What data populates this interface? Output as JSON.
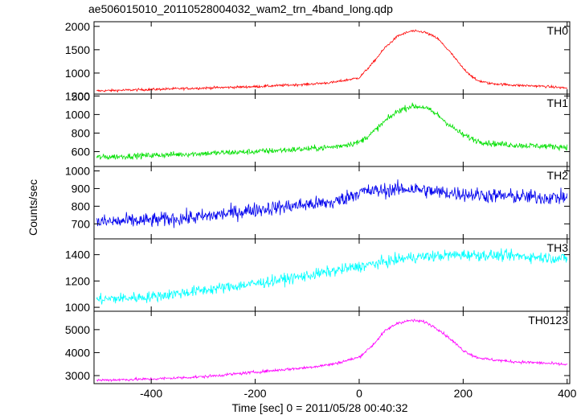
{
  "chart_data": {
    "type": "line",
    "title": "ae506015010_20110528004032_wam2_trn_4band_long.qdp",
    "xlabel": "Time [sec] 0 = 2011/05/28 00:40:32",
    "ylabel": "Counts/sec",
    "xlim": [
      -510,
      405
    ],
    "x_ticks": [
      -400,
      -200,
      0,
      200,
      400
    ],
    "grid": false,
    "panels": [
      {
        "name": "TH0",
        "color": "#ff0000",
        "ylim": [
          550,
          2100
        ],
        "y_ticks": [
          500,
          1000,
          1500,
          2000
        ],
        "x": [
          -500,
          -400,
          -300,
          -200,
          -100,
          -50,
          0,
          25,
          50,
          75,
          100,
          125,
          150,
          175,
          200,
          225,
          250,
          300,
          350,
          400
        ],
        "y": [
          620,
          650,
          680,
          710,
          760,
          800,
          900,
          1200,
          1550,
          1800,
          1900,
          1880,
          1750,
          1450,
          1100,
          850,
          780,
          740,
          720,
          680
        ],
        "noise": 25
      },
      {
        "name": "TH1",
        "color": "#00e000",
        "ylim": [
          440,
          1220
        ],
        "y_ticks": [
          600,
          800,
          1000,
          1200
        ],
        "x": [
          -500,
          -400,
          -300,
          -200,
          -100,
          -50,
          0,
          25,
          50,
          75,
          100,
          125,
          150,
          175,
          200,
          225,
          250,
          300,
          350,
          400
        ],
        "y": [
          540,
          560,
          580,
          600,
          630,
          650,
          700,
          800,
          930,
          1040,
          1090,
          1080,
          1000,
          880,
          780,
          720,
          690,
          670,
          660,
          650
        ],
        "noise": 30
      },
      {
        "name": "TH2",
        "color": "#0000ee",
        "ylim": [
          615,
          1025
        ],
        "y_ticks": [
          700,
          800,
          900,
          1000
        ],
        "x": [
          -500,
          -400,
          -300,
          -200,
          -100,
          -50,
          0,
          50,
          100,
          150,
          200,
          250,
          300,
          350,
          400
        ],
        "y": [
          710,
          720,
          740,
          780,
          810,
          820,
          880,
          890,
          900,
          880,
          870,
          860,
          855,
          850,
          850
        ],
        "noise": 40
      },
      {
        "name": "TH3",
        "color": "#00ffff",
        "ylim": [
          970,
          1520
        ],
        "y_ticks": [
          1000,
          1200,
          1400
        ],
        "x": [
          -500,
          -400,
          -300,
          -200,
          -100,
          0,
          100,
          200,
          300,
          400
        ],
        "y": [
          1060,
          1080,
          1130,
          1180,
          1240,
          1310,
          1380,
          1400,
          1390,
          1370
        ],
        "noise": 40
      },
      {
        "name": "TH0123",
        "color": "#ff00ff",
        "ylim": [
          2650,
          5800
        ],
        "y_ticks": [
          3000,
          4000,
          5000
        ],
        "x": [
          -500,
          -400,
          -300,
          -200,
          -100,
          -50,
          0,
          25,
          50,
          75,
          100,
          125,
          150,
          175,
          200,
          225,
          250,
          300,
          350,
          400
        ],
        "y": [
          2800,
          2850,
          2950,
          3150,
          3350,
          3500,
          3800,
          4300,
          4950,
          5300,
          5400,
          5350,
          5050,
          4600,
          4100,
          3800,
          3700,
          3600,
          3550,
          3480
        ],
        "noise": 60
      }
    ]
  }
}
